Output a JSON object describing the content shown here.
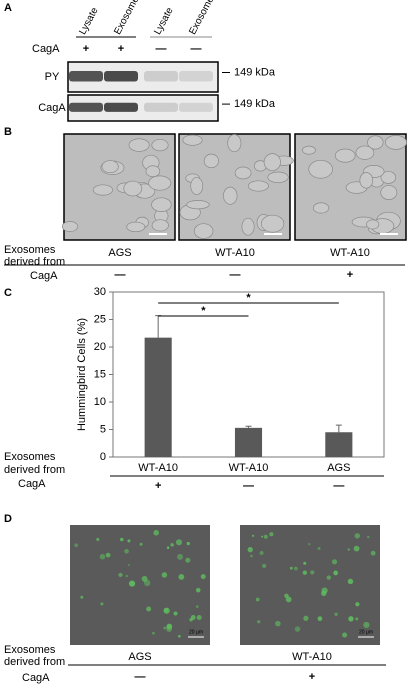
{
  "panel_a": {
    "label": "A",
    "columns": [
      "Lysate",
      "Exosome",
      "Lysate",
      "Exosome"
    ],
    "row_label": "CagA",
    "signs": [
      "+",
      "+",
      "—",
      "—"
    ],
    "blots": [
      {
        "label": "PY",
        "marker": "149 kDa"
      },
      {
        "label": "CagA",
        "marker": "149 kDa"
      }
    ]
  },
  "panel_b": {
    "label": "B",
    "row_label": [
      "Exosomes",
      "derived from"
    ],
    "cagA_label": "CagA",
    "groups": [
      "AGS",
      "WT-A10",
      "WT-A10"
    ],
    "signs": [
      "—",
      "—",
      "+"
    ]
  },
  "panel_c": {
    "label": "C",
    "row_label": [
      "Exosomes",
      "derived from"
    ],
    "cagA_label": "CagA",
    "signs": [
      "+",
      "—",
      "—"
    ]
  },
  "chart_data": {
    "type": "bar",
    "ylabel": "Hummingbird Cells (%)",
    "categories": [
      "WT-A10",
      "WT-A10",
      "AGS"
    ],
    "values": [
      21.7,
      5.3,
      4.5
    ],
    "errors": [
      4.0,
      0.3,
      1.3
    ],
    "color": "#595959",
    "ylim": [
      0,
      30
    ],
    "yticks": [
      0,
      5,
      10,
      15,
      20,
      25,
      30
    ],
    "grid": false,
    "significance": [
      "*",
      "*"
    ]
  },
  "panel_d": {
    "label": "D",
    "row_label": [
      "Exosomes",
      "derived from"
    ],
    "cagA_label": "CagA",
    "groups": [
      "AGS",
      "WT-A10"
    ],
    "signs": [
      "—",
      "+"
    ],
    "scale": "20 µm"
  }
}
